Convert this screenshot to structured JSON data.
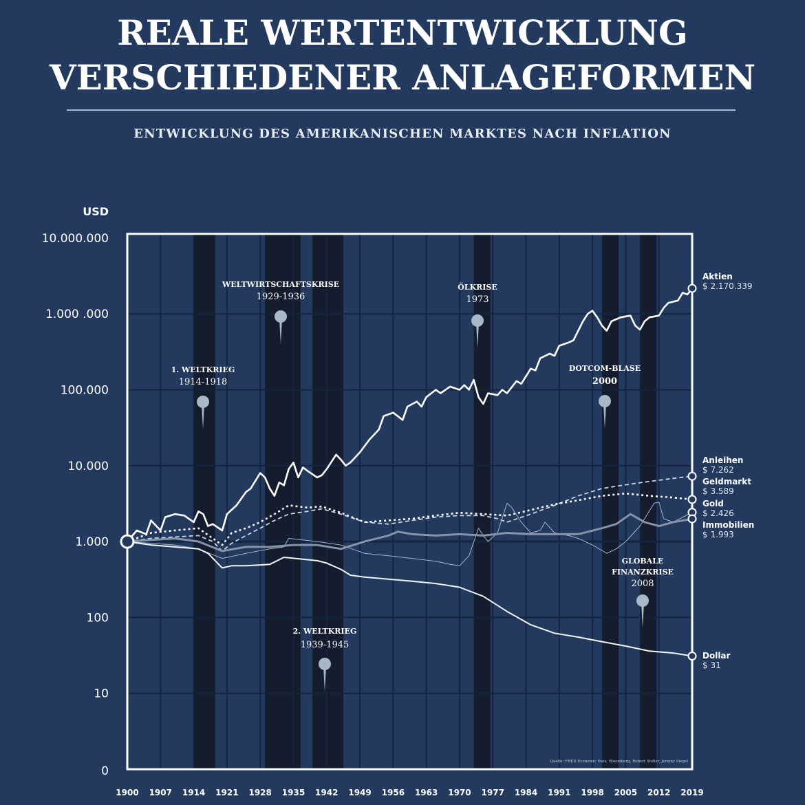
{
  "header": {
    "title_line1": "REALE WERTENTWICKLUNG",
    "title_line2": "VERSCHIEDENER ANLAGEFORMEN",
    "subtitle": "ENTWICKLUNG DES AMERIKANISCHEN MARKTES NACH INFLATION"
  },
  "colors": {
    "background": "#233a5e",
    "band": "#151c2d",
    "grid": "#142440",
    "line": "#ffffff",
    "pin": "#a9b8c6"
  },
  "chart_data": {
    "type": "line",
    "title": "Reale Wertentwicklung verschiedener Anlageformen",
    "subtitle": "Entwicklung des amerikanischen Marktes nach Inflation",
    "ylabel": "USD",
    "xlabel": "",
    "yscale": "log",
    "ylim": [
      1,
      10000000
    ],
    "y_ticks": [
      "10.000.000",
      "1.000 .000",
      "100.000",
      "10.000",
      "1.000",
      "100",
      "10",
      "0"
    ],
    "x_ticks": [
      "1900",
      "1907",
      "1914",
      "1921",
      "1928",
      "1935",
      "1942",
      "1949",
      "1956",
      "1963",
      "1970",
      "1977",
      "1984",
      "1991",
      "1998",
      "2005",
      "2012",
      "2019"
    ],
    "grid": true,
    "legend_position": "right (end labels)",
    "start_value": 1000,
    "series": [
      {
        "name": "Aktien",
        "end_label": "$ 2.170.339",
        "final": 2170339,
        "style": "solid-thick",
        "x": [
          1900,
          1902,
          1904,
          1905,
          1907,
          1908,
          1910,
          1912,
          1914,
          1915,
          1916,
          1917,
          1918,
          1920,
          1921,
          1923,
          1925,
          1926,
          1928,
          1929,
          1930,
          1931,
          1932,
          1933,
          1934,
          1935,
          1936,
          1937,
          1938,
          1940,
          1941,
          1942,
          1944,
          1945,
          1946,
          1947,
          1949,
          1951,
          1953,
          1954,
          1956,
          1958,
          1959,
          1961,
          1962,
          1963,
          1965,
          1966,
          1968,
          1970,
          1971,
          1972,
          1973,
          1974,
          1975,
          1976,
          1978,
          1979,
          1980,
          1982,
          1983,
          1985,
          1986,
          1987,
          1989,
          1990,
          1991,
          1993,
          1994,
          1995,
          1996,
          1997,
          1998,
          1999,
          2000,
          2001,
          2002,
          2003,
          2004,
          2006,
          2007,
          2008,
          2009,
          2010,
          2012,
          2013,
          2014,
          2016,
          2017,
          2018,
          2019
        ],
        "values": [
          1000,
          1400,
          1250,
          1900,
          1400,
          2100,
          2300,
          2200,
          1800,
          2500,
          2300,
          1600,
          1700,
          1400,
          2300,
          3000,
          4500,
          5000,
          8000,
          7000,
          5000,
          4000,
          6000,
          5500,
          9000,
          11000,
          7000,
          9500,
          8500,
          7000,
          7500,
          9000,
          14000,
          12000,
          10000,
          11000,
          15000,
          22000,
          30000,
          45000,
          50000,
          40000,
          60000,
          70000,
          60000,
          80000,
          100000,
          90000,
          110000,
          100000,
          115000,
          100000,
          135000,
          80000,
          65000,
          90000,
          85000,
          100000,
          90000,
          130000,
          120000,
          190000,
          180000,
          260000,
          300000,
          280000,
          380000,
          420000,
          450000,
          600000,
          800000,
          1000000,
          1100000,
          900000,
          700000,
          600000,
          800000,
          850000,
          900000,
          950000,
          700000,
          620000,
          800000,
          900000,
          950000,
          1200000,
          1400000,
          1500000,
          1900000,
          1800000,
          2170339
        ]
      },
      {
        "name": "Anleihen",
        "end_label": "$ 7.262",
        "final": 7262,
        "style": "dashed",
        "x": [
          1900,
          1905,
          1910,
          1915,
          1918,
          1920,
          1922,
          1925,
          1928,
          1931,
          1934,
          1938,
          1941,
          1945,
          1950,
          1955,
          1960,
          1965,
          1970,
          1975,
          1978,
          1980,
          1985,
          1990,
          1995,
          2000,
          2005,
          2010,
          2015,
          2019
        ],
        "values": [
          1000,
          1100,
          1150,
          1200,
          1000,
          750,
          950,
          1200,
          1500,
          1900,
          2300,
          2500,
          2700,
          2300,
          1800,
          1700,
          1900,
          2100,
          2200,
          2200,
          2000,
          1800,
          2300,
          3000,
          4000,
          5000,
          5600,
          6200,
          6800,
          7262
        ]
      },
      {
        "name": "Geldmarkt",
        "end_label": "$ 3.589",
        "final": 3589,
        "style": "dotted",
        "x": [
          1900,
          1905,
          1910,
          1915,
          1918,
          1920,
          1922,
          1925,
          1928,
          1931,
          1934,
          1938,
          1941,
          1945,
          1950,
          1955,
          1960,
          1965,
          1970,
          1975,
          1980,
          1985,
          1990,
          1995,
          2000,
          2005,
          2010,
          2015,
          2019
        ],
        "values": [
          1000,
          1300,
          1400,
          1500,
          1100,
          900,
          1300,
          1500,
          1800,
          2300,
          3000,
          2800,
          2900,
          2400,
          1800,
          1900,
          2000,
          2200,
          2400,
          2300,
          2200,
          2600,
          3100,
          3500,
          4000,
          4300,
          4000,
          3800,
          3589
        ]
      },
      {
        "name": "Gold",
        "end_label": "$ 2.426",
        "final": 2426,
        "style": "thin",
        "x": [
          1900,
          1905,
          1910,
          1915,
          1920,
          1925,
          1930,
          1933,
          1934,
          1940,
          1945,
          1950,
          1955,
          1960,
          1965,
          1968,
          1970,
          1972,
          1974,
          1975,
          1976,
          1978,
          1980,
          1981,
          1983,
          1985,
          1987,
          1988,
          1990,
          1993,
          1995,
          1998,
          2001,
          2003,
          2005,
          2008,
          2011,
          2012,
          2013,
          2015,
          2019
        ],
        "values": [
          1000,
          950,
          900,
          800,
          600,
          700,
          800,
          850,
          1100,
          1000,
          900,
          700,
          650,
          600,
          550,
          500,
          480,
          650,
          1500,
          1200,
          1000,
          1300,
          3200,
          2800,
          1800,
          1300,
          1400,
          1800,
          1300,
          1200,
          1100,
          900,
          700,
          800,
          1000,
          1600,
          3200,
          3300,
          2000,
          1800,
          2426
        ]
      },
      {
        "name": "Immobilien",
        "end_label": "$ 1.993",
        "final": 1993,
        "style": "solid-grey",
        "x": [
          1900,
          1905,
          1910,
          1915,
          1920,
          1925,
          1930,
          1935,
          1940,
          1945,
          1950,
          1955,
          1957,
          1960,
          1965,
          1970,
          1975,
          1980,
          1985,
          1990,
          1995,
          2000,
          2003,
          2006,
          2009,
          2012,
          2015,
          2019
        ],
        "values": [
          1000,
          1050,
          1100,
          1000,
          750,
          850,
          850,
          900,
          900,
          800,
          1000,
          1200,
          1350,
          1250,
          1200,
          1250,
          1200,
          1300,
          1250,
          1250,
          1250,
          1500,
          1700,
          2300,
          1800,
          1600,
          1800,
          1993
        ]
      },
      {
        "name": "Dollar",
        "end_label": "$ 31",
        "final": 31,
        "style": "solid",
        "x": [
          1900,
          1905,
          1910,
          1915,
          1917,
          1920,
          1922,
          1925,
          1930,
          1933,
          1940,
          1942,
          1945,
          1947,
          1950,
          1955,
          1960,
          1965,
          1970,
          1975,
          1980,
          1985,
          1990,
          1995,
          2000,
          2005,
          2010,
          2015,
          2019
        ],
        "values": [
          1000,
          900,
          850,
          800,
          700,
          450,
          480,
          480,
          500,
          620,
          560,
          520,
          430,
          360,
          340,
          320,
          300,
          280,
          250,
          190,
          120,
          80,
          62,
          55,
          48,
          42,
          36,
          34,
          31
        ]
      }
    ],
    "annotations": [
      {
        "label": "1. WELTKRIEG",
        "period": "1914-1918",
        "start": 1914,
        "end": 1918
      },
      {
        "label": "WELTWIRTSCHAFTSKRISE",
        "period": "1929-1936",
        "start": 1929,
        "end": 1936
      },
      {
        "label": "2. WELTKRIEG",
        "period": "1939-1945",
        "start": 1939,
        "end": 1945
      },
      {
        "label": "ÖLKRISE",
        "period": "1973",
        "start": 1973,
        "end": 1976
      },
      {
        "label": "DOTCOM-BLASE",
        "period": "2000",
        "start": 2000,
        "end": 2003
      },
      {
        "label": "GLOBALE FINANZKRISE",
        "period": "2008",
        "start": 2008,
        "end": 2011
      }
    ],
    "source": "Quelle: FRED Economic Data, Bloomberg, Robert Shiller, Jeremy Siegel"
  }
}
